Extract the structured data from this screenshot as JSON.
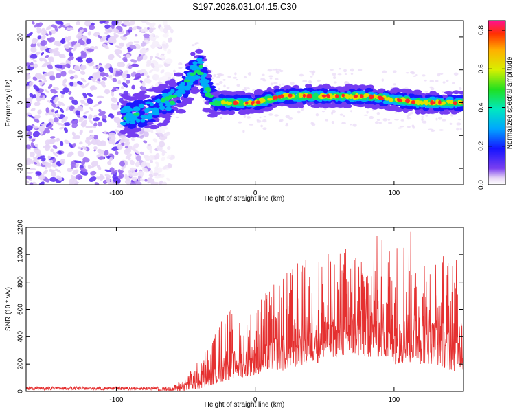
{
  "title": "S197.2026.031.04.15.C30",
  "chart_data": [
    {
      "type": "heatmap",
      "xlabel": "Height of straight line (km)",
      "ylabel": "Frequency (Hz)",
      "xlim": [
        -165,
        150
      ],
      "ylim": [
        -25,
        25
      ],
      "xticks": [
        -100,
        0,
        100
      ],
      "yticks": [
        -20,
        -10,
        0,
        10,
        20
      ],
      "colorbar": {
        "label": "Normalized spectral amplitude",
        "range": [
          0,
          0.85
        ],
        "ticks": [
          0.0,
          0.2,
          0.4,
          0.6,
          0.8
        ],
        "tick_labels": [
          "0.0",
          "0.2",
          "0.4",
          "0.6",
          "0.8"
        ]
      },
      "ridge": {
        "description_points_x": [
          -90,
          -80,
          -70,
          -60,
          -50,
          -45,
          -40,
          -35,
          -30,
          -20,
          -10,
          0,
          20,
          40,
          60,
          80,
          100,
          120,
          150
        ],
        "freq_y": [
          -4,
          -3,
          -1,
          1,
          5,
          9,
          11,
          4,
          0,
          0,
          0,
          0,
          2,
          2,
          2,
          2,
          1,
          0,
          0
        ]
      },
      "noise_region_x": [
        -165,
        -60
      ]
    },
    {
      "type": "line",
      "xlabel": "Height of straight line (km)",
      "ylabel": "SNR (10 * v/v)",
      "xlim": [
        -165,
        150
      ],
      "ylim": [
        0,
        1200
      ],
      "xticks": [
        -100,
        0,
        100
      ],
      "yticks": [
        0,
        200,
        400,
        600,
        800,
        1000,
        1200
      ],
      "series": [
        {
          "name": "SNR",
          "color": "#e53030",
          "envelope_x": [
            -165,
            -70,
            -60,
            -50,
            -40,
            -30,
            -20,
            -10,
            0,
            10,
            20,
            30,
            40,
            50,
            60,
            70,
            80,
            90,
            100,
            110,
            120,
            130,
            140,
            150
          ],
          "envelope_max": [
            30,
            30,
            40,
            100,
            250,
            400,
            650,
            500,
            650,
            750,
            850,
            950,
            1000,
            1000,
            1050,
            1100,
            1150,
            1150,
            1100,
            1200,
            1100,
            1050,
            1000,
            950
          ],
          "envelope_min": [
            0,
            0,
            0,
            0,
            20,
            50,
            80,
            100,
            120,
            150,
            150,
            180,
            200,
            220,
            250,
            250,
            250,
            250,
            200,
            200,
            200,
            200,
            150,
            150
          ]
        }
      ]
    }
  ]
}
